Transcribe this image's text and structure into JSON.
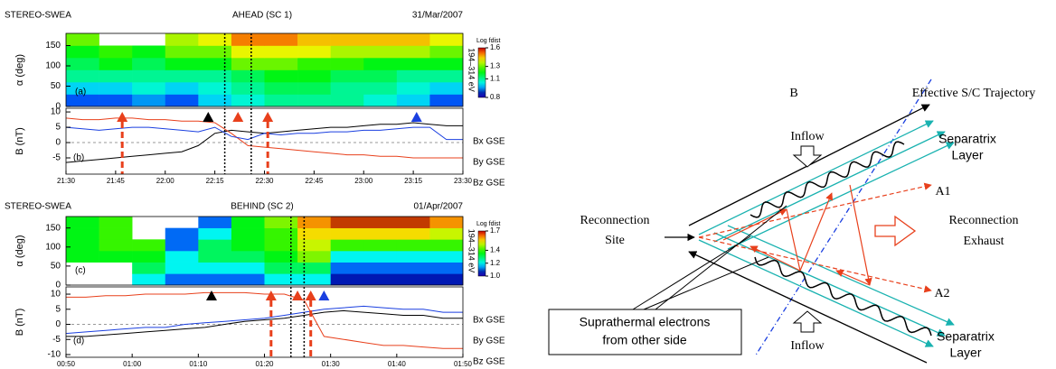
{
  "chart_data": [
    {
      "type": "heatmap",
      "header_left": "STEREO-SWEA",
      "header_center": "AHEAD (SC 1)",
      "header_right": "31/Mar/2007",
      "ylabel": "α (deg)",
      "panel_label": "(a)",
      "energy_label": "194–314 eV",
      "colorbar_title": "Log fdist",
      "x": [
        "21:30",
        "21:40",
        "21:50",
        "22:00",
        "22:10",
        "22:20",
        "22:30",
        "22:40",
        "22:50",
        "23:00",
        "23:10",
        "23:20"
      ],
      "y_bins": [
        0,
        30,
        60,
        90,
        120,
        150,
        180
      ],
      "z": [
        [
          0.9,
          0.9,
          0.95,
          0.9,
          1.0,
          1.05,
          1.1,
          1.1,
          1.1,
          1.05,
          1.0,
          0.9
        ],
        [
          1.0,
          1.0,
          1.05,
          1.0,
          1.05,
          1.1,
          1.15,
          1.15,
          1.1,
          1.1,
          1.05,
          1.0
        ],
        [
          1.1,
          1.1,
          1.1,
          1.1,
          1.1,
          1.15,
          1.2,
          1.2,
          1.15,
          1.15,
          1.1,
          1.1
        ],
        [
          1.15,
          1.2,
          1.15,
          1.2,
          1.2,
          1.3,
          1.3,
          1.25,
          1.25,
          1.2,
          1.2,
          1.2
        ],
        [
          1.2,
          1.25,
          1.2,
          1.3,
          1.3,
          1.4,
          1.4,
          1.4,
          1.35,
          1.35,
          1.35,
          1.3
        ],
        [
          1.3,
          null,
          null,
          1.35,
          1.4,
          1.5,
          1.5,
          1.45,
          1.45,
          1.45,
          1.45,
          1.4
        ]
      ],
      "xlim": [
        "21:30",
        "23:30"
      ],
      "ylim": [
        0,
        180
      ],
      "yticks": [
        0,
        50,
        100,
        150
      ],
      "clim": [
        0.8,
        1.6
      ],
      "cticks": [
        0.8,
        1.1,
        1.3,
        1.6
      ],
      "vlines": [
        "22:18",
        "22:26"
      ]
    },
    {
      "type": "line",
      "ylabel": "B (nT)",
      "panel_label": "(b)",
      "x": [
        "21:30",
        "21:35",
        "21:40",
        "21:45",
        "21:50",
        "21:55",
        "22:00",
        "22:05",
        "22:10",
        "22:15",
        "22:20",
        "22:25",
        "22:30",
        "22:35",
        "22:40",
        "22:45",
        "22:50",
        "22:55",
        "23:00",
        "23:05",
        "23:10",
        "23:15",
        "23:20",
        "23:25",
        "23:30"
      ],
      "series": [
        {
          "name": "Bx GSE",
          "color": "#000000",
          "values": [
            -6.5,
            -6,
            -5.5,
            -5,
            -4.5,
            -4,
            -3.5,
            -3,
            -1,
            3,
            4,
            3.5,
            3,
            3.5,
            4,
            4.5,
            5,
            5,
            5.5,
            6,
            6,
            6.5,
            6,
            5.5,
            5.5
          ]
        },
        {
          "name": "By GSE",
          "color": "#e8401c",
          "values": [
            8,
            7.5,
            7.5,
            8,
            8,
            7.5,
            7.5,
            7,
            7,
            6.5,
            3,
            -1,
            -1.5,
            -2,
            -2.5,
            -3,
            -3.5,
            -4,
            -4,
            -4.5,
            -4.5,
            -5,
            -5,
            -5,
            -5
          ]
        },
        {
          "name": "Bz GSE",
          "color": "#1a3fe0",
          "values": [
            5,
            4.5,
            4,
            4.5,
            5,
            5,
            4.5,
            4,
            3.5,
            5,
            2,
            1,
            3,
            2.5,
            3,
            3,
            3.5,
            3.5,
            4,
            4,
            4.5,
            5,
            5,
            1,
            1
          ]
        }
      ],
      "xlim": [
        "21:30",
        "23:30"
      ],
      "xticks": [
        "21:30",
        "21:45",
        "22:00",
        "22:15",
        "22:30",
        "22:45",
        "23:00",
        "23:15",
        "23:30"
      ],
      "ylim": [
        -10.3,
        11.2
      ],
      "yticks": [
        -5,
        0,
        5,
        10
      ],
      "vlines": [
        "22:18",
        "22:26"
      ],
      "markers": [
        {
          "x": "21:47",
          "color": "#e8401c",
          "dashed": true
        },
        {
          "x": "22:13",
          "color": "#000000",
          "dashed": false
        },
        {
          "x": "22:22",
          "color": "#e8401c",
          "dashed": false
        },
        {
          "x": "22:31",
          "color": "#e8401c",
          "dashed": true
        },
        {
          "x": "23:16",
          "color": "#1a3fe0",
          "dashed": false
        }
      ]
    },
    {
      "type": "heatmap",
      "header_left": "STEREO-SWEA",
      "header_center": "BEHIND (SC 2)",
      "header_right": "01/Apr/2007",
      "ylabel": "α (deg)",
      "panel_label": "(c)",
      "energy_label": "194–314 eV",
      "colorbar_title": "Log fdist",
      "x": [
        "00:50",
        "00:55",
        "01:00",
        "01:05",
        "01:10",
        "01:15",
        "01:20",
        "01:25",
        "01:30",
        "01:35",
        "01:40",
        "01:45"
      ],
      "y_bins": [
        0,
        30,
        60,
        90,
        120,
        150,
        180
      ],
      "z": [
        [
          null,
          null,
          1.2,
          1.1,
          1.1,
          1.1,
          1.2,
          1.2,
          1.05,
          1.05,
          1.05,
          1.05
        ],
        [
          null,
          null,
          1.3,
          1.2,
          1.2,
          1.2,
          1.3,
          1.3,
          1.1,
          1.1,
          1.1,
          1.1
        ],
        [
          1.35,
          1.35,
          1.35,
          1.2,
          1.3,
          1.3,
          1.35,
          1.45,
          1.2,
          1.2,
          1.2,
          1.2
        ],
        [
          1.35,
          1.4,
          1.4,
          1.1,
          1.3,
          1.35,
          1.4,
          1.5,
          1.4,
          1.4,
          1.4,
          1.4
        ],
        [
          1.35,
          1.4,
          null,
          1.1,
          1.2,
          1.35,
          1.4,
          1.55,
          1.55,
          1.55,
          1.55,
          1.5
        ],
        [
          1.35,
          1.4,
          null,
          null,
          1.1,
          1.35,
          1.45,
          1.6,
          1.65,
          1.65,
          1.65,
          1.6
        ]
      ],
      "xlim": [
        "00:50",
        "01:50"
      ],
      "ylim": [
        0,
        180
      ],
      "yticks": [
        0,
        50,
        100,
        150
      ],
      "clim": [
        1.0,
        1.7
      ],
      "cticks": [
        {
          "value": 1.0,
          "label": "1.0"
        },
        1.2,
        1.4,
        1.7
      ],
      "vlines": [
        "01:24",
        "01:26"
      ]
    },
    {
      "type": "line",
      "ylabel": "B (nT)",
      "panel_label": "(d)",
      "x": [
        "00:50",
        "00:53",
        "00:56",
        "00:59",
        "01:02",
        "01:05",
        "01:08",
        "01:11",
        "01:14",
        "01:17",
        "01:20",
        "01:23",
        "01:26",
        "01:29",
        "01:32",
        "01:35",
        "01:38",
        "01:41",
        "01:44",
        "01:47",
        "01:50"
      ],
      "series": [
        {
          "name": "Bx GSE",
          "color": "#000000",
          "values": [
            -4,
            -4,
            -3.5,
            -3,
            -2.5,
            -2,
            -1.5,
            -1,
            0,
            1,
            1.5,
            2,
            3,
            4,
            4.5,
            4,
            3.5,
            3,
            3,
            2,
            2
          ]
        },
        {
          "name": "By GSE",
          "color": "#e8401c",
          "values": [
            9,
            9,
            9.5,
            9.5,
            10,
            10,
            10,
            10.5,
            10.5,
            10.5,
            10,
            10,
            8,
            -4,
            -5,
            -6,
            -7,
            -7,
            -7.5,
            -8,
            -8
          ]
        },
        {
          "name": "Bz GSE",
          "color": "#1a3fe0",
          "values": [
            -3,
            -2.5,
            -2,
            -1.5,
            -1,
            -1,
            0,
            0.5,
            1,
            1.5,
            2,
            3,
            4,
            5,
            5.5,
            6,
            5.5,
            5,
            5,
            4,
            4
          ]
        }
      ],
      "xlim": [
        "00:50",
        "01:50"
      ],
      "xticks": [
        "00:50",
        "01:00",
        "01:10",
        "01:20",
        "01:30",
        "01:40",
        "01:50"
      ],
      "ylim": [
        -10.9,
        12.4
      ],
      "yticks": [
        -10,
        -5,
        0,
        5,
        10
      ],
      "vlines": [
        "01:24",
        "01:26"
      ],
      "markers": [
        {
          "x": "01:12",
          "color": "#000000",
          "dashed": false
        },
        {
          "x": "01:21",
          "color": "#e8401c",
          "dashed": true
        },
        {
          "x": "01:25",
          "color": "#e8401c",
          "dashed": false
        },
        {
          "x": "01:27",
          "color": "#e8401c",
          "dashed": true
        },
        {
          "x": "01:29",
          "color": "#1a3fe0",
          "dashed": false
        }
      ]
    }
  ],
  "diagram": {
    "trajectory": "Effective S/C Trajectory",
    "b_label": "B",
    "inflow_top": "Inflow",
    "separatrix_top": [
      "Separatrix",
      "Layer"
    ],
    "a1": "A1",
    "site": [
      "Reconnection",
      "Site"
    ],
    "exhaust": [
      "Reconnection",
      "Exhaust"
    ],
    "a2": "A2",
    "suprathermal": [
      "Suprathermal electrons",
      "from other side"
    ],
    "inflow_bottom": "Inflow",
    "separatrix_bottom": [
      "Separatrix",
      "Layer"
    ]
  }
}
